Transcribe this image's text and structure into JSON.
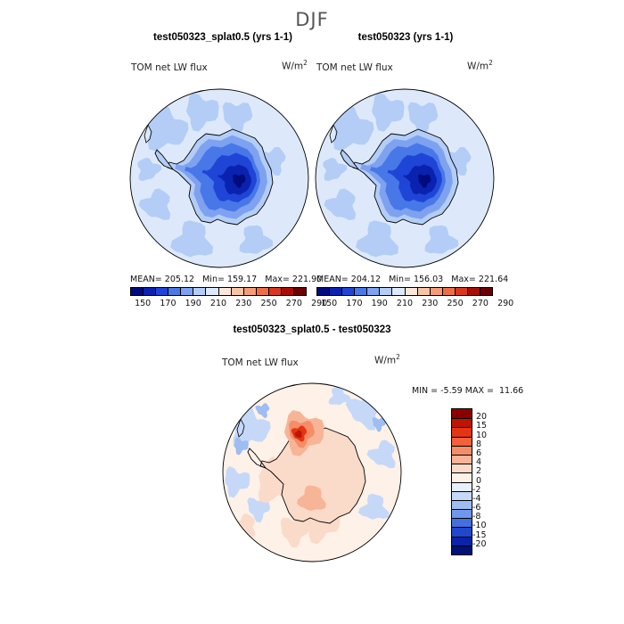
{
  "season": "DJF",
  "panels": [
    {
      "title": "test050323_splat0.5 (yrs 1-1)",
      "variable": "TOM net LW flux",
      "unit_base": "W/m",
      "unit_exp": "2",
      "mean_label": "MEAN=",
      "mean": "205.12",
      "min_label": "Min=",
      "min": "159.17",
      "max_label": "Max=",
      "max": "221.90"
    },
    {
      "title": "test050323 (yrs 1-1)",
      "variable": "TOM net LW flux",
      "unit_base": "W/m",
      "unit_exp": "2",
      "mean_label": "MEAN=",
      "mean": "204.12",
      "min_label": "Min=",
      "min": "156.03",
      "max_label": "Max=",
      "max": "221.64"
    }
  ],
  "diff_panel": {
    "title": "test050323_splat0.5 - test050323",
    "variable": "TOM net LW flux",
    "unit_base": "W/m",
    "unit_exp": "2",
    "min_label": "MIN =",
    "min": "-5.59",
    "max_label": "MAX =",
    "max": "11.66"
  },
  "abs_colorbar": {
    "colors": [
      "#000b7e",
      "#0a22b0",
      "#1f45d6",
      "#4877e8",
      "#7ea2f0",
      "#b3cdf7",
      "#dde9fb",
      "#fbe6d9",
      "#f8c3a6",
      "#f59b77",
      "#ef6d46",
      "#d9381d",
      "#a90e05",
      "#6b0002"
    ],
    "tick_labels": [
      "150",
      "170",
      "190",
      "210",
      "230",
      "250",
      "270",
      "290"
    ]
  },
  "diff_colorbar": {
    "colors": [
      "#8a0000",
      "#bf1400",
      "#e33512",
      "#f2623a",
      "#f58d69",
      "#f7b497",
      "#fadac8",
      "#fdf1e8",
      "#e6effc",
      "#c5d8f8",
      "#9dbdf3",
      "#6f98ec",
      "#4270e0",
      "#2048cc",
      "#0a23a8",
      "#00107a"
    ],
    "tick_labels": [
      "20",
      "15",
      "10",
      "8",
      "6",
      "4",
      "2",
      "0",
      "-2",
      "-4",
      "-6",
      "-8",
      "-10",
      "-15",
      "-20"
    ]
  },
  "legend": {
    "colors": {
      "background": "#ffffff",
      "coast": "#000000",
      "title": "#555555"
    }
  }
}
